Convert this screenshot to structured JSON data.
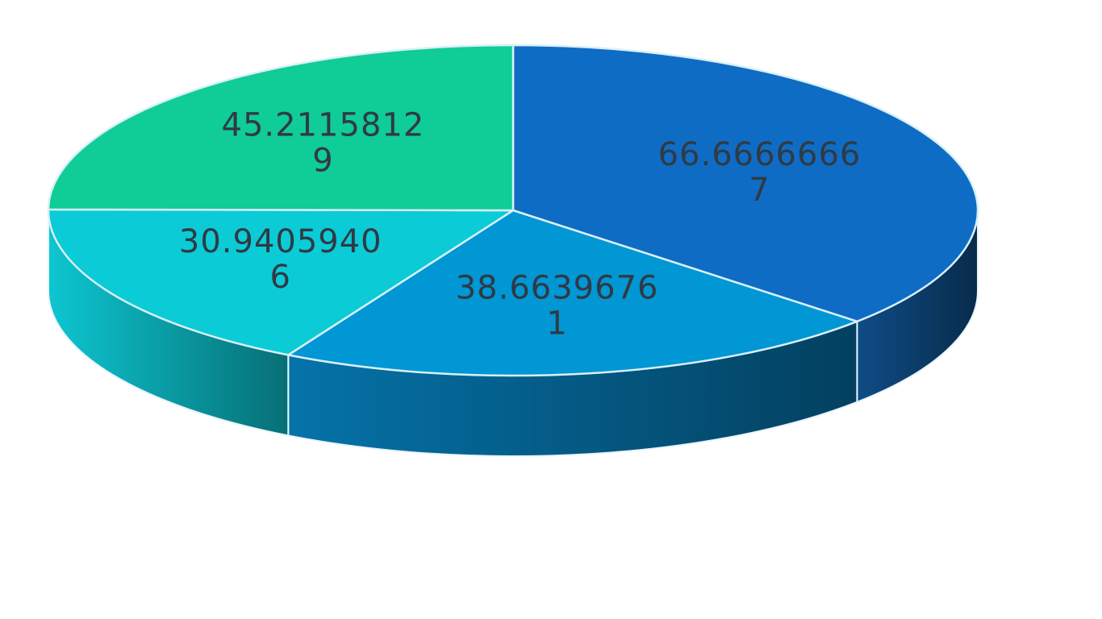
{
  "chart_data": {
    "type": "pie",
    "style": "3d",
    "legend": "none",
    "start_angle_deg": -90,
    "direction": "clockwise",
    "slices": [
      {
        "label": "66.66666667",
        "line1": "66.6666666",
        "line2": "7",
        "value": 66.66666667,
        "color": "#0f6cc4",
        "side_color": "#0b3d6b"
      },
      {
        "label": "38.66396761",
        "line1": "38.6639676",
        "line2": "1",
        "value": 38.66396761,
        "color": "#0196d4",
        "side_color": "#045c87"
      },
      {
        "label": "30.94059406",
        "line1": "30.9405940",
        "line2": "6",
        "value": 30.94059406,
        "color": "#0bcbd6",
        "side_color": "#0a9ea7"
      },
      {
        "label": "45.21158129",
        "line1": "45.2115812",
        "line2": "9",
        "value": 45.21158129,
        "color": "#10cc96",
        "side_color": "#0a9470"
      }
    ]
  }
}
